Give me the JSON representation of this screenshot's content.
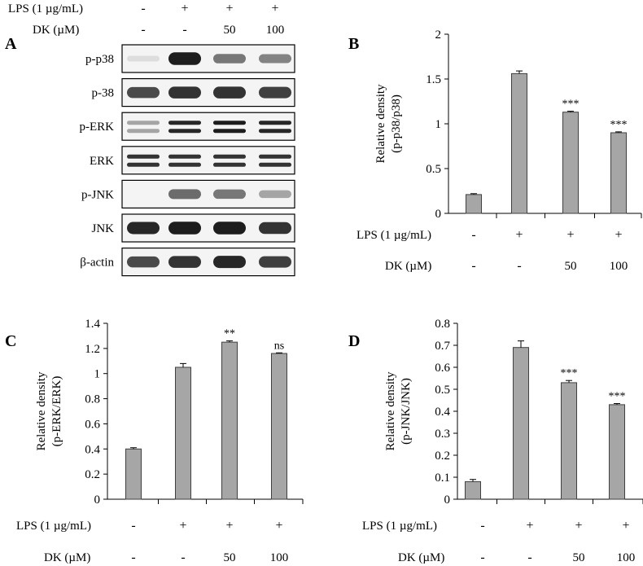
{
  "panels": {
    "A": "A",
    "B": "B",
    "C": "C",
    "D": "D"
  },
  "treatments": {
    "lps_label": "LPS (1 µg/mL)",
    "dk_label": "DK (µM)",
    "lps": [
      "-",
      "+",
      "+",
      "+"
    ],
    "dk": [
      "-",
      "-",
      "50",
      "100"
    ]
  },
  "blot": {
    "labels": [
      "p-p38",
      "p-38",
      "p-ERK",
      "ERK",
      "p-JNK",
      "JNK",
      "β-actin"
    ],
    "intensities": [
      [
        0.1,
        0.95,
        0.55,
        0.5
      ],
      [
        0.75,
        0.85,
        0.85,
        0.8
      ],
      [
        0.35,
        0.9,
        0.95,
        0.9
      ],
      [
        0.85,
        0.85,
        0.85,
        0.85
      ],
      [
        0.0,
        0.6,
        0.55,
        0.35
      ],
      [
        0.9,
        0.95,
        0.95,
        0.85
      ],
      [
        0.75,
        0.85,
        0.9,
        0.8
      ]
    ]
  },
  "chart_data": [
    {
      "id": "B",
      "type": "bar",
      "ylabel_lines": [
        "Relative density",
        "(p-p38/p38)"
      ],
      "ylim": [
        0,
        2
      ],
      "yticks": [
        0,
        0.5,
        1,
        1.5,
        2
      ],
      "ytick_labels": [
        "0",
        "0.5",
        "1",
        "1.5",
        "2"
      ],
      "values": [
        0.21,
        1.56,
        1.13,
        0.9
      ],
      "errors": [
        0.01,
        0.03,
        0.01,
        0.01
      ],
      "annotations": [
        "",
        "",
        "***",
        "***"
      ]
    },
    {
      "id": "C",
      "type": "bar",
      "ylabel_lines": [
        "Relative density",
        "(p-ERK/ERK)"
      ],
      "ylim": [
        0,
        1.4
      ],
      "yticks": [
        0,
        0.2,
        0.4,
        0.6,
        0.8,
        1,
        1.2,
        1.4
      ],
      "ytick_labels": [
        "0",
        "0.2",
        "0.4",
        "0.6",
        "0.8",
        "1",
        "1.2",
        "1.4"
      ],
      "values": [
        0.4,
        1.05,
        1.25,
        1.16
      ],
      "errors": [
        0.01,
        0.03,
        0.01,
        0.005
      ],
      "annotations": [
        "",
        "",
        "**",
        "ns"
      ]
    },
    {
      "id": "D",
      "type": "bar",
      "ylabel_lines": [
        "Relative density",
        "(p-JNK/JNK)"
      ],
      "ylim": [
        0,
        0.8
      ],
      "yticks": [
        0,
        0.1,
        0.2,
        0.3,
        0.4,
        0.5,
        0.6,
        0.7,
        0.8
      ],
      "ytick_labels": [
        "0",
        "0.1",
        "0.2",
        "0.3",
        "0.4",
        "0.5",
        "0.6",
        "0.7",
        "0.8"
      ],
      "values": [
        0.08,
        0.69,
        0.53,
        0.43
      ],
      "errors": [
        0.01,
        0.03,
        0.01,
        0.005
      ],
      "annotations": [
        "",
        "",
        "***",
        "***"
      ]
    }
  ],
  "colors": {
    "bar_fill": "#a6a6a6",
    "bar_stroke": "#404040"
  }
}
